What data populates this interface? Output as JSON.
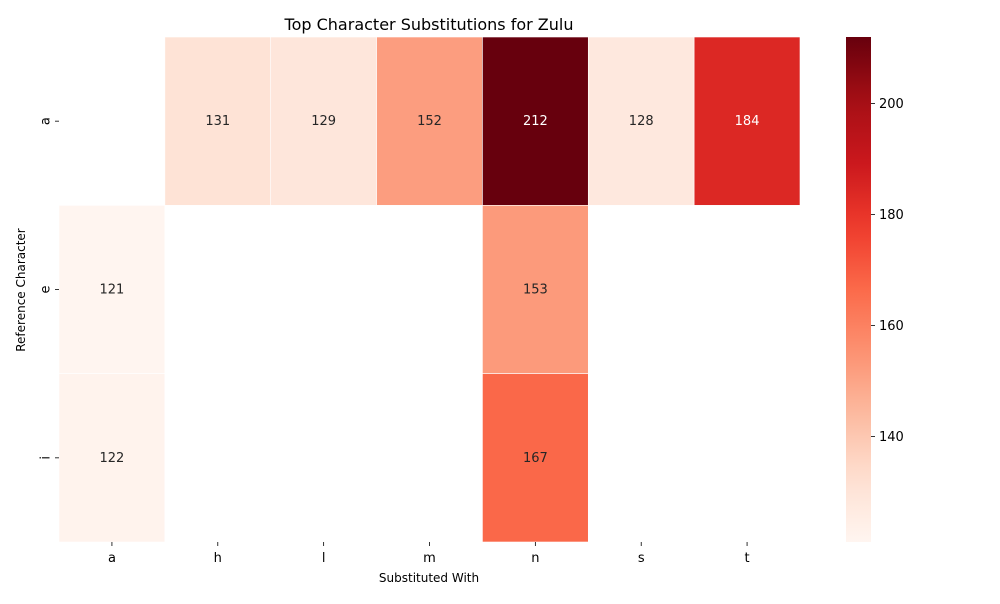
{
  "chart_data": {
    "type": "heatmap",
    "title": "Top Character Substitutions for Zulu",
    "xlabel": "Substituted With",
    "ylabel": "Reference Character",
    "x_categories": [
      "a",
      "h",
      "l",
      "m",
      "n",
      "s",
      "t"
    ],
    "y_categories": [
      "a",
      "e",
      "i"
    ],
    "values": [
      [
        null,
        131,
        129,
        152,
        212,
        128,
        184
      ],
      [
        121,
        null,
        null,
        null,
        153,
        null,
        null
      ],
      [
        122,
        null,
        null,
        null,
        167,
        null,
        null
      ]
    ],
    "colorscale": "Reds",
    "vmin": 121,
    "vmax": 212,
    "colorbar_ticks": [
      140,
      160,
      180,
      200
    ],
    "grid": false,
    "colorbar_position": "right"
  }
}
